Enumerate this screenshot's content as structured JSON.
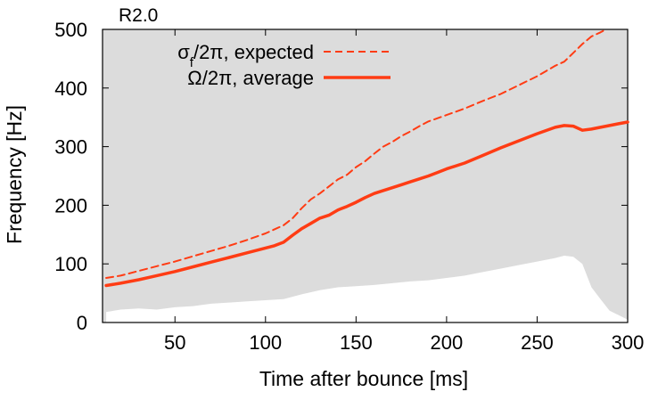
{
  "chart_data": {
    "type": "line",
    "title": "R2.0",
    "xlabel": "Time after bounce [ms]",
    "ylabel": "Frequency [Hz]",
    "xlim": [
      10,
      300
    ],
    "ylim": [
      0,
      500
    ],
    "xticks": [
      50,
      100,
      150,
      200,
      250,
      300
    ],
    "yticks": [
      0,
      100,
      200,
      300,
      400,
      500
    ],
    "grid": false,
    "legend_position": "top-left",
    "background_fill_color": "#dcdcdc",
    "series": [
      {
        "name_main": "σ",
        "name_sub": "f",
        "name_rest": "/2π, expected",
        "style": "dashed",
        "color": "#ff3c14",
        "x": [
          12,
          20,
          30,
          40,
          50,
          60,
          70,
          80,
          90,
          100,
          110,
          115,
          120,
          125,
          130,
          135,
          140,
          145,
          150,
          155,
          160,
          165,
          170,
          175,
          180,
          185,
          190,
          200,
          210,
          220,
          230,
          240,
          250,
          260,
          265,
          270,
          275,
          280,
          285,
          288
        ],
        "y": [
          76,
          80,
          88,
          96,
          104,
          113,
          122,
          131,
          141,
          152,
          166,
          178,
          195,
          210,
          220,
          232,
          244,
          252,
          265,
          275,
          288,
          300,
          308,
          318,
          326,
          335,
          343,
          354,
          365,
          378,
          390,
          405,
          420,
          438,
          445,
          460,
          475,
          488,
          495,
          500
        ]
      },
      {
        "name_main": "Ω",
        "name_sub": "",
        "name_rest": "/2π, average",
        "style": "solid",
        "color": "#ff3c14",
        "x": [
          12,
          20,
          30,
          40,
          50,
          60,
          70,
          80,
          90,
          100,
          105,
          110,
          115,
          120,
          125,
          130,
          135,
          140,
          145,
          150,
          155,
          160,
          165,
          170,
          175,
          180,
          185,
          190,
          195,
          200,
          210,
          220,
          230,
          240,
          250,
          260,
          265,
          270,
          275,
          280,
          285,
          290,
          295,
          300
        ],
        "y": [
          63,
          67,
          73,
          80,
          87,
          95,
          103,
          111,
          119,
          127,
          131,
          137,
          149,
          160,
          169,
          178,
          183,
          192,
          198,
          205,
          213,
          220,
          225,
          230,
          235,
          240,
          245,
          250,
          256,
          262,
          272,
          285,
          298,
          310,
          322,
          333,
          336,
          335,
          328,
          330,
          333,
          336,
          339,
          342
        ]
      }
    ],
    "shaded_region": {
      "description": "white region below the grey background (lower envelope)",
      "x": [
        12,
        20,
        30,
        40,
        50,
        60,
        70,
        80,
        90,
        100,
        110,
        120,
        130,
        140,
        150,
        160,
        170,
        180,
        190,
        200,
        210,
        220,
        230,
        240,
        250,
        260,
        265,
        270,
        275,
        280,
        285,
        290,
        300
      ],
      "y": [
        18,
        22,
        24,
        22,
        26,
        28,
        32,
        34,
        36,
        38,
        40,
        48,
        55,
        60,
        62,
        64,
        67,
        70,
        72,
        76,
        80,
        86,
        92,
        98,
        104,
        110,
        114,
        112,
        100,
        60,
        40,
        20,
        5
      ]
    }
  }
}
